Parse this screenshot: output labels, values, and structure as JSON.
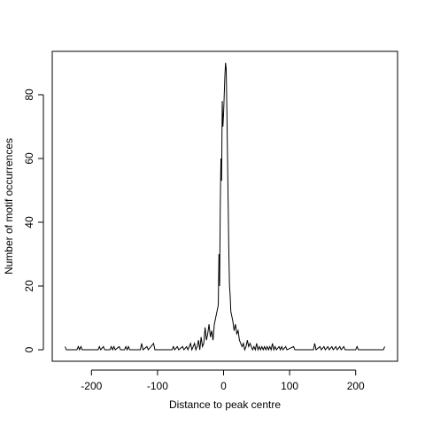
{
  "chart_data": {
    "type": "line",
    "xlabel": "Distance to peak centre",
    "ylabel": "Number of motif occurrences",
    "x": [
      -240,
      -238,
      -222,
      -220,
      -218,
      -216,
      -214,
      -190,
      -188,
      -186,
      -182,
      -180,
      -172,
      -170,
      -168,
      -166,
      -164,
      -158,
      -156,
      -150,
      -148,
      -146,
      -144,
      -142,
      -126,
      -124,
      -122,
      -116,
      -114,
      -106,
      -104,
      -78,
      -76,
      -74,
      -70,
      -68,
      -62,
      -60,
      -56,
      -54,
      -50,
      -48,
      -46,
      -44,
      -42,
      -40,
      -38,
      -36,
      -34,
      -32,
      -30,
      -28,
      -26,
      -24,
      -22,
      -20,
      -18,
      -16,
      -14,
      -12,
      -10,
      -8,
      -7,
      -6,
      -5,
      -4,
      -3,
      -2,
      -1,
      0,
      1,
      2,
      3,
      4,
      5,
      6,
      7,
      8,
      9,
      10,
      11,
      12,
      14,
      16,
      18,
      20,
      22,
      24,
      26,
      28,
      30,
      32,
      34,
      36,
      38,
      40,
      42,
      44,
      46,
      48,
      50,
      52,
      54,
      56,
      58,
      60,
      62,
      64,
      66,
      68,
      70,
      72,
      74,
      76,
      78,
      80,
      84,
      86,
      88,
      90,
      94,
      96,
      106,
      108,
      136,
      138,
      140,
      146,
      148,
      152,
      154,
      158,
      160,
      164,
      166,
      170,
      172,
      176,
      178,
      182,
      184,
      200,
      202,
      204,
      242,
      244
    ],
    "series": [
      {
        "color": "#000000",
        "values": [
          1,
          0,
          0,
          1,
          0,
          1,
          0,
          0,
          1,
          0,
          1,
          0,
          0,
          1,
          0,
          1,
          0,
          1,
          0,
          0,
          1,
          0,
          1,
          0,
          0,
          2,
          0,
          1,
          0,
          2,
          0,
          0,
          1,
          0,
          1,
          0,
          1,
          0,
          1,
          0,
          2,
          0,
          1,
          2,
          0,
          1,
          3,
          0,
          4,
          1,
          2,
          7,
          3,
          5,
          8,
          4,
          6,
          3,
          8,
          10,
          12,
          14,
          30,
          20,
          45,
          60,
          53,
          78,
          70,
          74,
          80,
          86,
          90,
          88,
          75,
          60,
          45,
          30,
          20,
          17,
          12,
          11,
          9,
          6,
          8,
          5,
          6,
          3,
          2,
          1,
          2,
          0,
          1,
          3,
          1,
          2,
          1,
          0,
          1,
          0,
          2,
          0,
          1,
          0,
          1,
          0,
          1,
          0,
          1,
          0,
          1,
          0,
          2,
          0,
          1,
          0,
          1,
          0,
          1,
          0,
          1,
          0,
          1,
          0,
          0,
          2,
          0,
          1,
          0,
          1,
          0,
          1,
          0,
          1,
          0,
          1,
          0,
          1,
          0,
          1,
          0,
          0,
          1,
          0,
          0,
          1
        ]
      }
    ],
    "xlim": [
      -259.4,
      263.4
    ],
    "ylim": [
      -3.6,
      93.6
    ],
    "xticks": [
      -200,
      -100,
      0,
      100,
      200
    ],
    "yticks": [
      0,
      20,
      40,
      60,
      80
    ]
  }
}
